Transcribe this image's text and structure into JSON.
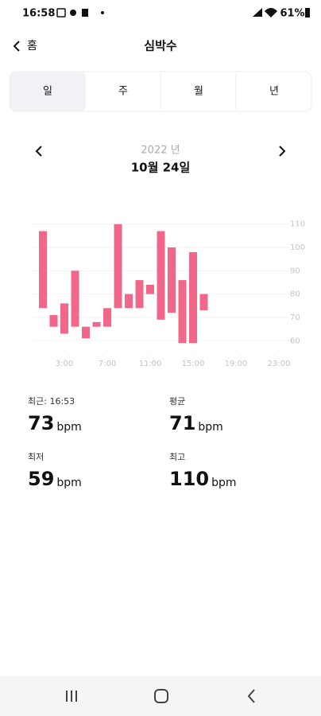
{
  "status_bar": {
    "time": "16:58",
    "battery": "61%"
  },
  "header": {
    "back": "홈",
    "title": "심박수"
  },
  "tabs": [
    "일",
    "주",
    "월",
    "년"
  ],
  "date": {
    "year": "2022 년",
    "day": "10월 24일"
  },
  "chart_data": {
    "type": "range-bar",
    "color": "#f0678a",
    "grid": true,
    "x": [
      1,
      2,
      3,
      4,
      5,
      6,
      7,
      8,
      9,
      10,
      11,
      12,
      13,
      14,
      15,
      16
    ],
    "low": [
      74,
      66,
      63,
      66,
      61,
      66,
      66,
      74,
      74,
      74,
      80,
      69,
      72,
      59,
      59,
      73
    ],
    "high": [
      107,
      71,
      76,
      90,
      66,
      68,
      74,
      110,
      80,
      86,
      84,
      107,
      100,
      86,
      98,
      80
    ],
    "xlim": [
      0,
      24
    ],
    "xticks": [
      {
        "value": 3,
        "label": "3:00"
      },
      {
        "value": 7,
        "label": "7:00"
      },
      {
        "value": 11,
        "label": "11:00"
      },
      {
        "value": 15,
        "label": "15:00"
      },
      {
        "value": 19,
        "label": "19:00"
      },
      {
        "value": 23,
        "label": "23:00"
      }
    ],
    "ylim": [
      56,
      114
    ],
    "yticks": [
      60,
      70,
      80,
      90,
      100,
      110
    ]
  },
  "stats": {
    "unit": "bpm",
    "items": [
      {
        "label": "최근: 16:53",
        "value": 73
      },
      {
        "label": "평균",
        "value": 71
      },
      {
        "label": "최저",
        "value": 59
      },
      {
        "label": "최고",
        "value": 110
      }
    ]
  }
}
